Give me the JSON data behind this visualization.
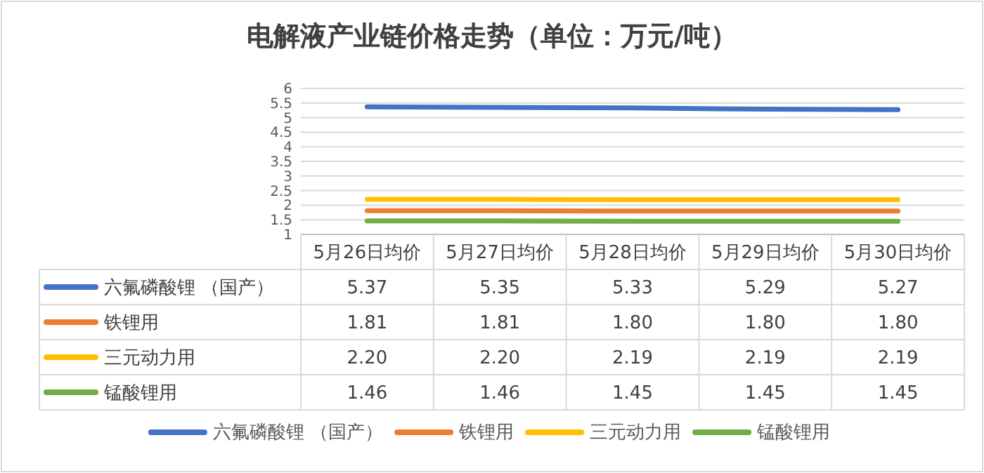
{
  "chart_data": {
    "type": "line",
    "title": "电解液产业链价格走势（单位：万元/吨）",
    "categories": [
      "5月26日均价",
      "5月27日均价",
      "5月28日均价",
      "5月29日均价",
      "5月30日均价"
    ],
    "series": [
      {
        "name": "六氟磷酸锂 （国产）",
        "color": "#4472c4",
        "values": [
          5.37,
          5.35,
          5.33,
          5.29,
          5.27
        ],
        "value_labels": [
          "5.37",
          "5.35",
          "5.33",
          "5.29",
          "5.27"
        ]
      },
      {
        "name": "铁锂用",
        "color": "#ed7d31",
        "values": [
          1.81,
          1.81,
          1.8,
          1.8,
          1.8
        ],
        "value_labels": [
          "1.81",
          "1.81",
          "1.80",
          "1.80",
          "1.80"
        ]
      },
      {
        "name": "三元动力用",
        "color": "#ffc000",
        "values": [
          2.2,
          2.2,
          2.19,
          2.19,
          2.19
        ],
        "value_labels": [
          "2.20",
          "2.20",
          "2.19",
          "2.19",
          "2.19"
        ]
      },
      {
        "name": "锰酸锂用",
        "color": "#70ad47",
        "values": [
          1.46,
          1.46,
          1.45,
          1.45,
          1.45
        ],
        "value_labels": [
          "1.46",
          "1.46",
          "1.45",
          "1.45",
          "1.45"
        ]
      }
    ],
    "ylim": [
      1,
      6
    ],
    "yticks": [
      1,
      1.5,
      2,
      2.5,
      3,
      3.5,
      4,
      4.5,
      5,
      5.5,
      6
    ],
    "grid": "y",
    "legend": "bottom",
    "marker": "none",
    "line_style": "solid"
  }
}
